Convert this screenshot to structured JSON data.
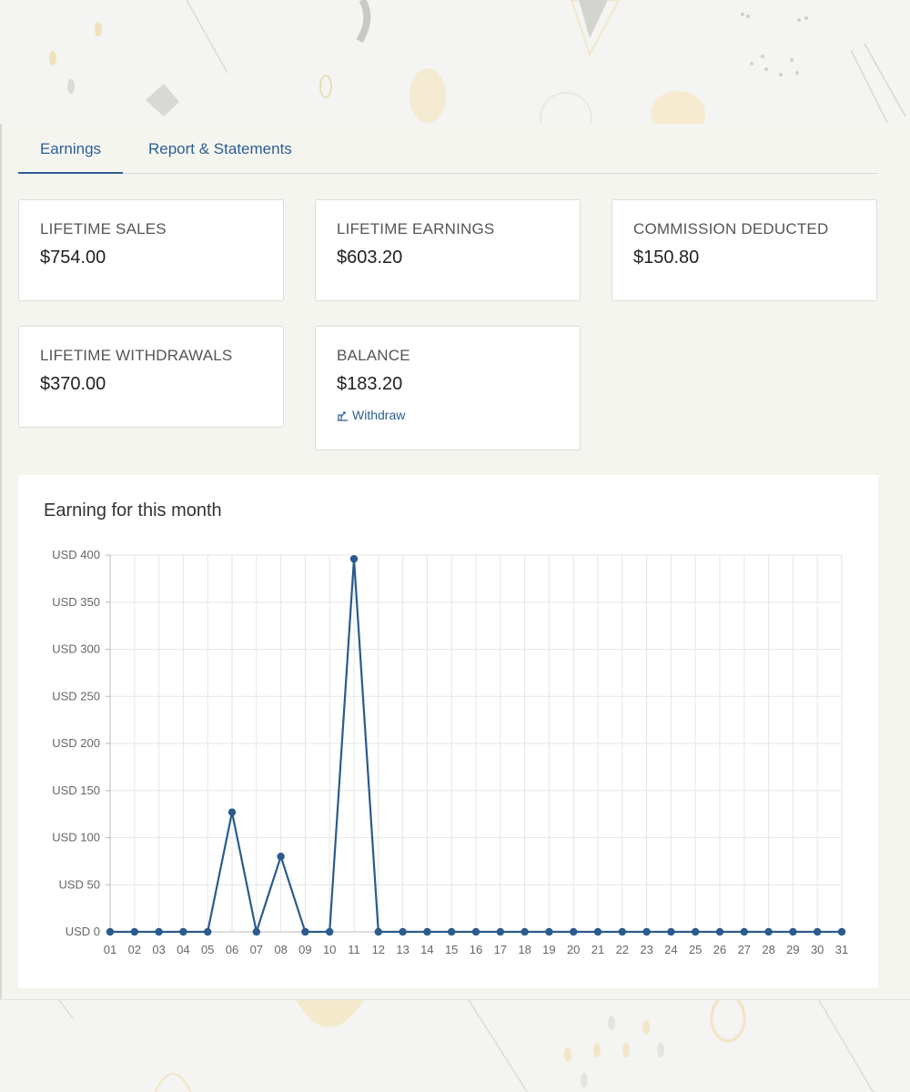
{
  "tabs": {
    "earnings": "Earnings",
    "reports": "Report & Statements"
  },
  "cards": {
    "lifetime_sales": {
      "label": "LIFETIME SALES",
      "value": "$754.00"
    },
    "lifetime_earnings": {
      "label": "LIFETIME EARNINGS",
      "value": "$603.20"
    },
    "commission_deducted": {
      "label": "COMMISSION DEDUCTED",
      "value": "$150.80"
    },
    "lifetime_withdrawals": {
      "label": "LIFETIME WITHDRAWALS",
      "value": "$370.00"
    },
    "balance": {
      "label": "BALANCE",
      "value": "$183.20",
      "action_label": "Withdraw",
      "action_icon": "withdraw-icon"
    }
  },
  "colors": {
    "accent": "#2c5f94",
    "series": "#2b5b8c"
  },
  "chart_data": {
    "type": "line",
    "title": "Earning for this month",
    "x": [
      "01",
      "02",
      "03",
      "04",
      "05",
      "06",
      "07",
      "08",
      "09",
      "10",
      "11",
      "12",
      "13",
      "14",
      "15",
      "16",
      "17",
      "18",
      "19",
      "20",
      "21",
      "22",
      "23",
      "24",
      "25",
      "26",
      "27",
      "28",
      "29",
      "30",
      "31"
    ],
    "series": [
      {
        "values": [
          0,
          0,
          0,
          0,
          0,
          127,
          0,
          80,
          0,
          0,
          396,
          0,
          0,
          0,
          0,
          0,
          0,
          0,
          0,
          0,
          0,
          0,
          0,
          0,
          0,
          0,
          0,
          0,
          0,
          0,
          0
        ]
      }
    ],
    "yticks": [
      "USD 0",
      "USD 50",
      "USD 100",
      "USD 150",
      "USD 200",
      "USD 250",
      "USD 300",
      "USD 350",
      "USD 400"
    ],
    "ylim": [
      0,
      400
    ],
    "grid": true,
    "xlabel": "",
    "ylabel": ""
  }
}
